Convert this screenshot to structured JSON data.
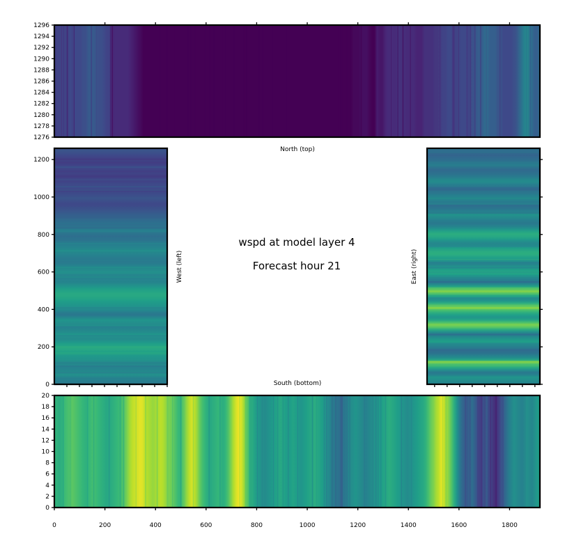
{
  "chart_data": [
    {
      "type": "heatmap",
      "panel": "north",
      "label": "North (top)",
      "x_range": [
        0,
        1920
      ],
      "y_range": [
        1276,
        1296
      ],
      "x_ticks": [],
      "y_ticks": [
        1276,
        1278,
        1280,
        1282,
        1284,
        1286,
        1288,
        1290,
        1292,
        1294,
        1296
      ],
      "x_tick_marks": [
        200,
        400,
        600,
        800,
        1000,
        1200,
        1400,
        1600,
        1800
      ],
      "column_values": [
        0.22,
        0.2,
        0.2,
        0.2,
        0.2,
        0.2,
        0.22,
        0.22,
        0.22,
        0.22,
        0.22,
        0.24,
        0.24,
        0.28,
        0.28,
        0.28,
        0.26,
        0.24,
        0.24,
        0.22,
        0.2,
        0.2,
        0.1,
        0.12,
        0.12,
        0.12,
        0.12,
        0.12,
        0.12,
        0.1,
        0.08,
        0.06,
        0.04,
        0.02,
        0,
        0,
        0,
        0,
        0,
        0,
        0,
        0,
        0,
        0,
        0,
        0,
        0,
        0,
        0,
        0,
        0,
        0,
        0,
        0,
        0,
        0,
        0,
        0,
        0,
        0,
        0,
        0,
        0,
        0,
        0,
        0,
        0,
        0,
        0,
        0,
        0,
        0,
        0,
        0,
        0,
        0,
        0,
        0,
        0,
        0,
        0,
        0,
        0,
        0,
        0,
        0,
        0,
        0,
        0,
        0,
        0,
        0,
        0,
        0,
        0,
        0,
        0,
        0,
        0,
        0,
        0,
        0,
        0,
        0,
        0,
        0,
        0,
        0,
        0,
        0,
        0,
        0,
        0,
        0,
        0.02,
        0.02,
        0.02,
        0.04,
        0.04,
        0.04,
        0.02,
        0,
        0,
        0.08,
        0.06,
        0.06,
        0.1,
        0.12,
        0.12,
        0.12,
        0.12,
        0.14,
        0.14,
        0.14,
        0.12,
        0.12,
        0.12,
        0.12,
        0.1,
        0.1,
        0.1,
        0.14,
        0.14,
        0.14,
        0.14,
        0.16,
        0.16,
        0.18,
        0.2,
        0.2,
        0.22,
        0.22,
        0.2,
        0.2,
        0.2,
        0.22,
        0.22,
        0.22,
        0.2,
        0.24,
        0.26,
        0.28,
        0.3,
        0.3,
        0.34,
        0.34,
        0.3,
        0.3,
        0.3,
        0.26,
        0.26,
        0.22,
        0.22,
        0.22,
        0.22,
        0.24,
        0.26,
        0.32,
        0.38,
        0.44,
        0.48,
        0.4,
        0.34,
        0.3,
        0.3,
        0.36
      ],
      "colormap": "viridis"
    },
    {
      "type": "heatmap",
      "panel": "west",
      "label": "West (left)",
      "x_range": [
        0,
        450
      ],
      "y_range": [
        0,
        1260
      ],
      "y_ticks": [
        0,
        200,
        400,
        600,
        800,
        1000,
        1200
      ],
      "row_values": [
        0.4,
        0.42,
        0.44,
        0.46,
        0.5,
        0.48,
        0.46,
        0.44,
        0.46,
        0.48,
        0.5,
        0.52,
        0.54,
        0.56,
        0.58,
        0.6,
        0.58,
        0.56,
        0.52,
        0.48,
        0.5,
        0.52,
        0.48,
        0.46,
        0.44,
        0.48,
        0.5,
        0.52,
        0.46,
        0.4,
        0.42,
        0.46,
        0.5,
        0.52,
        0.54,
        0.56,
        0.58,
        0.6,
        0.6,
        0.58,
        0.56,
        0.52,
        0.48,
        0.46,
        0.44,
        0.46,
        0.48,
        0.5,
        0.48,
        0.46,
        0.44,
        0.42,
        0.4,
        0.42,
        0.44,
        0.46,
        0.48,
        0.46,
        0.44,
        0.42,
        0.4,
        0.38,
        0.36,
        0.38,
        0.4,
        0.42,
        0.4,
        0.38,
        0.36,
        0.34,
        0.32,
        0.3,
        0.28,
        0.26,
        0.24,
        0.22,
        0.22,
        0.24,
        0.26,
        0.24,
        0.22,
        0.2,
        0.22,
        0.24,
        0.22,
        0.2,
        0.2,
        0.18,
        0.16,
        0.18,
        0.2,
        0.22,
        0.2,
        0.18,
        0.16,
        0.2,
        0.22,
        0.24,
        0.26,
        0.24
      ],
      "colormap": "viridis"
    },
    {
      "type": "heatmap",
      "panel": "east",
      "label": "East (right)",
      "x_range": [
        1470,
        1920
      ],
      "y_range": [
        0,
        1260
      ],
      "row_values": [
        0.44,
        0.46,
        0.5,
        0.52,
        0.44,
        0.4,
        0.5,
        0.6,
        0.7,
        0.8,
        0.62,
        0.5,
        0.44,
        0.38,
        0.36,
        0.4,
        0.44,
        0.5,
        0.56,
        0.52,
        0.46,
        0.4,
        0.5,
        0.62,
        0.74,
        0.8,
        0.7,
        0.58,
        0.52,
        0.56,
        0.62,
        0.7,
        0.78,
        0.74,
        0.62,
        0.52,
        0.48,
        0.56,
        0.7,
        0.82,
        0.72,
        0.58,
        0.46,
        0.4,
        0.44,
        0.5,
        0.56,
        0.6,
        0.56,
        0.5,
        0.46,
        0.44,
        0.5,
        0.56,
        0.6,
        0.64,
        0.6,
        0.56,
        0.5,
        0.46,
        0.5,
        0.56,
        0.6,
        0.62,
        0.58,
        0.52,
        0.46,
        0.42,
        0.4,
        0.44,
        0.48,
        0.5,
        0.46,
        0.42,
        0.38,
        0.36,
        0.4,
        0.44,
        0.46,
        0.44,
        0.4,
        0.38,
        0.36,
        0.4,
        0.44,
        0.48,
        0.46,
        0.42,
        0.38,
        0.36,
        0.34,
        0.38,
        0.42,
        0.4,
        0.36,
        0.34,
        0.32,
        0.34,
        0.36,
        0.38
      ],
      "colormap": "viridis"
    },
    {
      "type": "heatmap",
      "panel": "south",
      "label": "South (bottom)",
      "x_range": [
        0,
        1920
      ],
      "y_range": [
        0,
        20
      ],
      "x_ticks": [
        0,
        200,
        400,
        600,
        800,
        1000,
        1200,
        1400,
        1600,
        1800
      ],
      "y_ticks": [
        0,
        2,
        4,
        6,
        8,
        10,
        12,
        14,
        16,
        18,
        20
      ],
      "column_values": [
        0.66,
        0.64,
        0.62,
        0.64,
        0.68,
        0.7,
        0.72,
        0.74,
        0.72,
        0.7,
        0.68,
        0.66,
        0.64,
        0.66,
        0.68,
        0.7,
        0.68,
        0.66,
        0.64,
        0.62,
        0.6,
        0.6,
        0.62,
        0.64,
        0.66,
        0.68,
        0.7,
        0.74,
        0.8,
        0.86,
        0.9,
        0.92,
        0.94,
        0.96,
        0.95,
        0.9,
        0.88,
        0.86,
        0.84,
        0.86,
        0.88,
        0.9,
        0.88,
        0.84,
        0.8,
        0.78,
        0.74,
        0.7,
        0.66,
        0.7,
        0.76,
        0.84,
        0.9,
        0.94,
        0.9,
        0.84,
        0.76,
        0.7,
        0.66,
        0.62,
        0.6,
        0.62,
        0.64,
        0.66,
        0.64,
        0.62,
        0.66,
        0.72,
        0.8,
        0.88,
        0.94,
        0.98,
        0.94,
        0.86,
        0.76,
        0.68,
        0.62,
        0.58,
        0.54,
        0.52,
        0.5,
        0.48,
        0.5,
        0.52,
        0.54,
        0.56,
        0.58,
        0.6,
        0.58,
        0.56,
        0.54,
        0.56,
        0.58,
        0.56,
        0.54,
        0.52,
        0.54,
        0.56,
        0.58,
        0.6,
        0.62,
        0.6,
        0.58,
        0.56,
        0.54,
        0.5,
        0.46,
        0.42,
        0.4,
        0.38,
        0.36,
        0.38,
        0.4,
        0.44,
        0.48,
        0.5,
        0.52,
        0.5,
        0.48,
        0.46,
        0.44,
        0.46,
        0.48,
        0.5,
        0.52,
        0.54,
        0.56,
        0.58,
        0.6,
        0.62,
        0.6,
        0.58,
        0.56,
        0.54,
        0.52,
        0.5,
        0.48,
        0.5,
        0.52,
        0.54,
        0.56,
        0.58,
        0.6,
        0.64,
        0.7,
        0.76,
        0.8,
        0.86,
        0.9,
        0.96,
        0.92,
        0.86,
        0.8,
        0.72,
        0.62,
        0.52,
        0.42,
        0.34,
        0.3,
        0.28,
        0.32,
        0.36,
        0.3,
        0.24,
        0.18,
        0.22,
        0.3,
        0.26,
        0.2,
        0.16,
        0.12,
        0.18,
        0.24,
        0.3,
        0.36,
        0.42,
        0.46,
        0.5,
        0.48,
        0.46,
        0.44,
        0.46,
        0.5,
        0.48,
        0.46,
        0.5,
        0.54,
        0.56
      ],
      "colormap": "viridis"
    }
  ],
  "title_line1": "wspd at model layer 4",
  "title_line2": "Forecast hour 21",
  "colors": {
    "background": "#ffffff",
    "frame": "#000000",
    "colormap_stops": [
      "#440154",
      "#482878",
      "#3e4a89",
      "#31688e",
      "#26828e",
      "#1f9e89",
      "#35b779",
      "#6ece58",
      "#b5de2b",
      "#fde725"
    ]
  }
}
